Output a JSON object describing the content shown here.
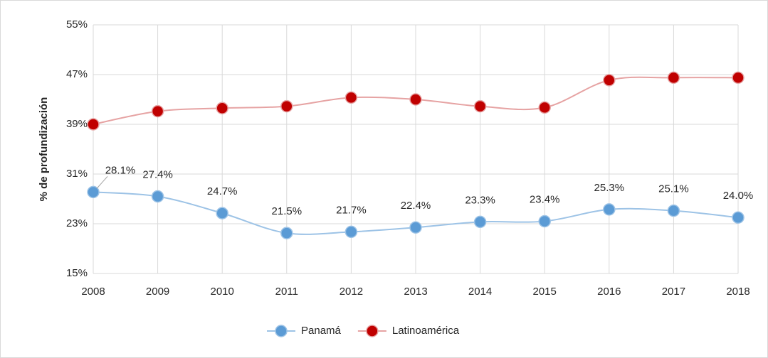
{
  "chart_data": {
    "type": "line",
    "y_label": "% de profundización",
    "categories": [
      "2008",
      "2009",
      "2010",
      "2011",
      "2012",
      "2013",
      "2014",
      "2015",
      "2016",
      "2017",
      "2018"
    ],
    "series": [
      {
        "name": "Panamá",
        "color": "#9dc3e6",
        "marker_color": "#5b9bd5",
        "values": [
          28.1,
          27.4,
          24.7,
          21.5,
          21.7,
          22.4,
          23.3,
          23.4,
          25.3,
          25.1,
          24.0
        ],
        "value_labels": [
          "28.1%",
          "27.4%",
          "24.7%",
          "21.5%",
          "21.7%",
          "22.4%",
          "23.3%",
          "23.4%",
          "25.3%",
          "25.1%",
          "24.0%"
        ]
      },
      {
        "name": "Latinoamérica",
        "color": "#e6a3a3",
        "marker_color": "#c00000",
        "values": [
          39.0,
          41.1,
          41.6,
          41.9,
          43.3,
          43.0,
          41.9,
          41.7,
          46.1,
          46.5,
          46.5
        ]
      }
    ],
    "ylim": [
      15,
      55
    ],
    "yticks": [
      {
        "value": 15,
        "label": "15%"
      },
      {
        "value": 23,
        "label": "23%"
      },
      {
        "value": 31,
        "label": "31%"
      },
      {
        "value": 39,
        "label": "39%"
      },
      {
        "value": 47,
        "label": "47%"
      },
      {
        "value": 55,
        "label": "55%"
      }
    ],
    "grid": true,
    "smooth": true,
    "legend": "bottom"
  }
}
